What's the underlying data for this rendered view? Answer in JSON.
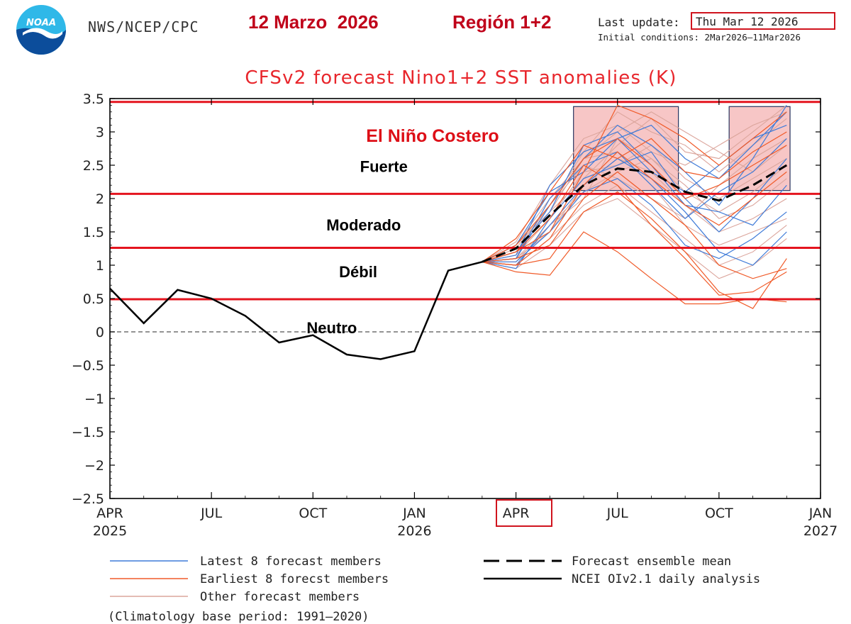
{
  "header": {
    "agency": "NWS/NCEP/CPC",
    "date_label": "12 Marzo  2026",
    "region_label": "Región 1+2",
    "last_update_label": "Last update:",
    "last_update_value": "Thu Mar 12 2026",
    "initial_conditions": "Initial conditions: 2Mar2026–11Mar2026"
  },
  "colors": {
    "title": "#e8262c",
    "threshold_lines": "#e4141e",
    "annotation": "#dd0f17",
    "latest_members": "#3f7bd8",
    "earliest_members": "#f05a28",
    "other_members": "#dba59c",
    "shade": "#f4b3b3",
    "observed": "#000000"
  },
  "legend": {
    "latest": "Latest 8 forecast members",
    "earliest": "Earliest 8 forecst members",
    "other": "Other forecast members",
    "mean": "Forecast ensemble mean",
    "observed": "NCEI OIv2.1 daily analysis"
  },
  "footer": {
    "climatology": "(Climatology base period: 1991–2020)"
  },
  "chart_data": {
    "type": "line",
    "title": "CFSv2 forecast Nino1+2 SST anomalies (K)",
    "ylim": [
      -2.5,
      3.5
    ],
    "y_ticks": [
      3.5,
      3,
      2.5,
      2,
      1.5,
      1,
      0.5,
      0,
      -0.5,
      -1,
      -1.5,
      -2,
      -2.5
    ],
    "y_tick_labels": [
      "3.5",
      "3",
      "2.5",
      "2",
      "1.5",
      "1",
      "0.5",
      "0",
      "−0.5",
      "−1",
      "−1.5",
      "−2",
      "−2.5"
    ],
    "x_range_months": [
      0,
      21
    ],
    "x_ticks": [
      {
        "month": 0,
        "label": "APR",
        "year": "2025"
      },
      {
        "month": 3,
        "label": "JUL",
        "year": ""
      },
      {
        "month": 6,
        "label": "OCT",
        "year": ""
      },
      {
        "month": 9,
        "label": "JAN",
        "year": "2026"
      },
      {
        "month": 12,
        "label": "APR",
        "year": ""
      },
      {
        "month": 15,
        "label": "JUL",
        "year": ""
      },
      {
        "month": 18,
        "label": "OCT",
        "year": ""
      },
      {
        "month": 21,
        "label": "JAN",
        "year": "2027"
      }
    ],
    "highlighted_tick": "APR",
    "thresholds": [
      3.45,
      2.07,
      1.26,
      0.49
    ],
    "zero_line": 0,
    "shaded_boxes": [
      {
        "month_from": 13.7,
        "month_to": 16.8,
        "y_from": 2.12,
        "y_to": 3.38
      },
      {
        "month_from": 18.3,
        "month_to": 20.1,
        "y_from": 2.12,
        "y_to": 3.38
      }
    ],
    "observed": {
      "name": "NCEI OIv2.1 daily analysis",
      "x": [
        0,
        1,
        2,
        3,
        4,
        5,
        6,
        7,
        8,
        9,
        10,
        11
      ],
      "y": [
        0.65,
        0.13,
        0.63,
        0.5,
        0.24,
        -0.16,
        -0.05,
        -0.34,
        -0.41,
        -0.29,
        0.92,
        1.05
      ]
    },
    "ensemble_mean": {
      "name": "Forecast ensemble mean",
      "x": [
        11,
        12,
        13,
        14,
        15,
        16,
        17,
        18,
        19,
        20
      ],
      "y": [
        1.05,
        1.25,
        1.75,
        2.2,
        2.45,
        2.4,
        2.1,
        1.97,
        2.2,
        2.5
      ]
    },
    "members": {
      "x": [
        11,
        12,
        13,
        14,
        15,
        16,
        17,
        18,
        19,
        20
      ],
      "latest": [
        [
          1.05,
          1.1,
          1.9,
          2.6,
          3.1,
          2.8,
          2.4,
          1.9,
          2.6,
          3.4
        ],
        [
          1.05,
          1.3,
          2.1,
          2.4,
          2.9,
          3.1,
          2.6,
          2.3,
          2.8,
          3.3
        ],
        [
          1.05,
          1.0,
          1.6,
          2.2,
          2.6,
          2.3,
          1.8,
          1.2,
          1.0,
          1.5
        ],
        [
          1.05,
          1.2,
          1.8,
          2.8,
          3.0,
          2.5,
          1.9,
          1.8,
          1.6,
          2.2
        ],
        [
          1.05,
          1.1,
          2.0,
          2.5,
          2.7,
          2.2,
          1.7,
          2.1,
          2.4,
          2.9
        ],
        [
          1.05,
          0.95,
          1.7,
          2.3,
          2.5,
          2.7,
          2.0,
          1.5,
          2.0,
          2.6
        ],
        [
          1.05,
          1.15,
          2.2,
          2.7,
          2.9,
          2.4,
          2.1,
          2.5,
          2.9,
          3.1
        ],
        [
          1.05,
          1.05,
          1.5,
          2.1,
          2.3,
          1.9,
          1.3,
          1.1,
          1.4,
          1.8
        ]
      ],
      "earliest": [
        [
          1.05,
          0.9,
          0.85,
          1.5,
          1.2,
          0.8,
          0.42,
          0.42,
          0.5,
          0.45
        ],
        [
          1.05,
          1.2,
          1.5,
          2.4,
          3.4,
          3.2,
          2.9,
          2.5,
          2.9,
          3.3
        ],
        [
          1.05,
          1.0,
          1.1,
          1.8,
          2.1,
          1.7,
          1.2,
          0.6,
          0.35,
          1.1
        ],
        [
          1.05,
          1.3,
          1.9,
          2.6,
          2.9,
          2.5,
          2.0,
          2.2,
          2.5,
          2.8
        ],
        [
          1.05,
          1.1,
          1.3,
          2.0,
          2.4,
          2.0,
          1.6,
          1.0,
          0.8,
          0.95
        ],
        [
          1.05,
          1.4,
          2.1,
          2.8,
          2.6,
          2.9,
          2.4,
          2.3,
          2.7,
          3.0
        ],
        [
          1.05,
          1.0,
          1.4,
          2.2,
          2.7,
          2.3,
          1.9,
          1.6,
          2.0,
          2.4
        ],
        [
          1.05,
          1.2,
          1.7,
          2.5,
          2.2,
          1.6,
          1.1,
          0.55,
          0.6,
          0.9
        ]
      ],
      "other": [
        [
          1.05,
          1.2,
          1.8,
          2.3,
          2.8,
          3.2,
          2.7,
          2.6,
          3.0,
          3.4
        ],
        [
          1.05,
          1.1,
          1.6,
          2.1,
          2.4,
          2.6,
          2.2,
          1.7,
          1.9,
          2.3
        ],
        [
          1.05,
          1.3,
          2.0,
          2.6,
          2.7,
          2.2,
          1.6,
          1.3,
          1.5,
          1.7
        ],
        [
          1.05,
          1.0,
          1.4,
          1.9,
          2.2,
          1.8,
          1.4,
          1.0,
          1.2,
          1.6
        ],
        [
          1.05,
          1.25,
          1.9,
          2.7,
          3.3,
          3.0,
          2.8,
          2.4,
          2.8,
          3.2
        ],
        [
          1.05,
          1.15,
          1.7,
          2.4,
          2.5,
          2.8,
          2.3,
          2.0,
          2.3,
          2.6
        ],
        [
          1.05,
          0.95,
          1.3,
          1.8,
          2.0,
          1.6,
          1.2,
          0.8,
          1.0,
          1.4
        ],
        [
          1.05,
          1.35,
          2.2,
          2.9,
          3.1,
          2.7,
          2.5,
          2.8,
          3.1,
          3.3
        ],
        [
          1.05,
          1.1,
          1.5,
          2.2,
          2.6,
          2.4,
          1.9,
          1.5,
          1.7,
          2.0
        ],
        [
          1.05,
          1.2,
          1.9,
          2.5,
          2.3,
          2.0,
          1.7,
          2.2,
          2.6,
          2.9
        ],
        [
          1.05,
          1.05,
          1.6,
          2.0,
          2.9,
          2.6,
          2.1,
          1.8,
          2.1,
          2.5
        ],
        [
          1.05,
          1.3,
          1.8,
          2.6,
          3.0,
          3.3,
          3.0,
          2.7,
          2.4,
          2.8
        ]
      ]
    },
    "annotations": [
      {
        "text": "El Niño Costero",
        "month": 11.5,
        "y": 2.85,
        "style": "red"
      },
      {
        "text": "Fuerte",
        "month": 8.8,
        "y": 2.4,
        "style": "black"
      },
      {
        "text": "Moderado",
        "month": 8.6,
        "y": 1.52,
        "style": "black"
      },
      {
        "text": "Débil",
        "month": 7.9,
        "y": 0.82,
        "style": "black"
      },
      {
        "text": "Neutro",
        "month": 7.3,
        "y": -0.02,
        "style": "black"
      }
    ]
  }
}
